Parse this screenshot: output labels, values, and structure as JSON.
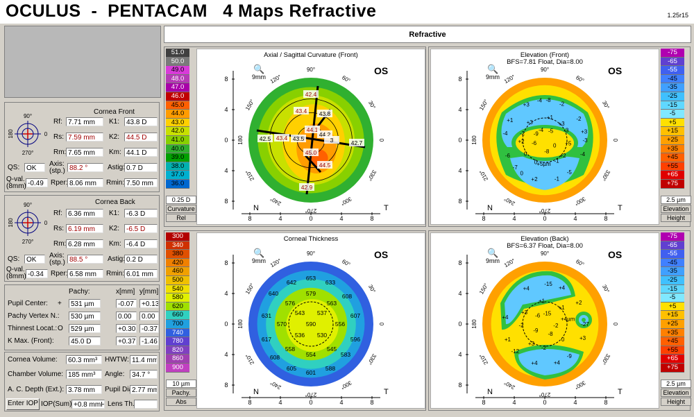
{
  "header": {
    "title": "OCULUS  -  PENTACAM   4 Maps Refractive",
    "version": "1.25r15"
  },
  "main_title": "Refractive",
  "cornea_front": {
    "title": "Cornea Front",
    "rf_label": "Rf:",
    "rf": "7.71 mm",
    "k1_label": "K1:",
    "k1": "43.8 D",
    "rs_label": "Rs:",
    "rs": "7.59 mm",
    "k2_label": "K2:",
    "k2": "44.5 D",
    "rm_label": "Rm:",
    "rm": "7.65 mm",
    "km_label": "Km:",
    "km": "44.1 D",
    "qs_label": "QS:",
    "qs": "OK",
    "axis_label": "Axis:",
    "axis_sub": "(stp.)",
    "axis": "88.2 °",
    "astig_label": "Astig:",
    "astig": "0.7 D",
    "qval_label": "Q-val.",
    "qval_sub": "(8mm)",
    "qval": "-0.49",
    "rper_label": "Rper:",
    "rper": "8.06 mm",
    "rmin_label": "Rmin:",
    "rmin": "7.50 mm"
  },
  "cornea_back": {
    "title": "Cornea Back",
    "rf_label": "Rf:",
    "rf": "6.36 mm",
    "k1_label": "K1:",
    "k1": "-6.3 D",
    "rs_label": "Rs:",
    "rs": "6.19 mm",
    "k2_label": "K2:",
    "k2": "-6.5 D",
    "rm_label": "Rm:",
    "rm": "6.28 mm",
    "km_label": "Km:",
    "km": "-6.4 D",
    "qs_label": "QS:",
    "qs": "OK",
    "axis_label": "Axis:",
    "axis_sub": "(stp.)",
    "axis": "88.5 °",
    "astig_label": "Astig:",
    "astig": "0.2 D",
    "qval_label": "Q-val.",
    "qval_sub": "(8mm)",
    "qval": "-0.34",
    "rper_label": "Rper:",
    "rper": "6.58 mm",
    "rmin_label": "Rmin:",
    "rmin": "6.01 mm"
  },
  "orientation": {
    "top": "90°",
    "bottom": "270°",
    "left": "180",
    "right": "0"
  },
  "pachy": {
    "col_pachy": "Pachy:",
    "col_x": "x[mm]",
    "col_y": "y[mm]",
    "rows": [
      {
        "label": "Pupil Center:",
        "mark": "+",
        "pachy": "531 µm",
        "x": "-0.07",
        "y": "+0.13"
      },
      {
        "label": "Pachy Vertex N.:",
        "mark": "",
        "pachy": "530 µm",
        "x": "0.00",
        "y": "0.00"
      },
      {
        "label": "Thinnest Locat.:",
        "mark": "O",
        "pachy": "529 µm",
        "x": "+0.30",
        "y": "-0.37"
      },
      {
        "label": "K Max. (Front):",
        "mark": "",
        "pachy": "45.0 D",
        "x": "+0.37",
        "y": "-1.46"
      }
    ]
  },
  "volumes": {
    "cornea_volume_label": "Cornea Volume:",
    "cornea_volume": "60.3 mm³",
    "hwtw_label": "HWTW:",
    "hwtw": "11.4 mm",
    "chamber_volume_label": "Chamber Volume:",
    "chamber_volume": "185 mm³",
    "angle_label": "Angle:",
    "angle": "34.7 °",
    "acd_label": "A. C. Depth (Ext.):",
    "acd": "3.78 mm",
    "pupil_dia_label": "Pupil Dia:",
    "pupil_dia": "2.77 mm",
    "enter_iop": "Enter IOP",
    "iop_label": "IOP(Sum):",
    "iop": "+0.8 mmHg",
    "lens_label": "Lens Th.:",
    "lens": ""
  },
  "maps": {
    "common": {
      "nasal": "N",
      "temporal": "T",
      "eye": "OS",
      "scale_mm": "9mm",
      "x_ticks": [
        "8",
        "4",
        "0",
        "4",
        "8"
      ],
      "y_ticks": [
        "8",
        "4",
        "0",
        "4",
        "8"
      ],
      "angles": [
        "90°",
        "60°",
        "30°",
        "0",
        "330°",
        "300°",
        "270°",
        "240°",
        "210°",
        "180",
        "150°",
        "120°"
      ]
    },
    "axial": {
      "title": "Axial / Sagittal Curvature (Front)",
      "scale": [
        "51.0",
        "50.0",
        "49.0",
        "48.0",
        "47.0",
        "46.0",
        "45.0",
        "44.0",
        "43.0",
        "42.0",
        "41.0",
        "40.0",
        "39.0",
        "38.0",
        "37.0",
        "36.0"
      ],
      "step": "0.25 D",
      "type": "Curvature",
      "mode": "Rel",
      "labels": [
        "42.4",
        "43.4",
        "43.8",
        "44.1",
        "44.2",
        "43.5",
        "43.4",
        "42.5",
        "45.0",
        "44.5",
        "42.9",
        "42.7",
        "3"
      ]
    },
    "elev_front": {
      "title": "Elevation (Front)",
      "subtitle": "BFS=7.81 Float, Dia=8.00",
      "scale": [
        "-75",
        "-65",
        "-55",
        "-45",
        "-35",
        "-25",
        "-15",
        "-5",
        "+5",
        "+15",
        "+25",
        "+35",
        "+45",
        "+55",
        "+65",
        "+75"
      ],
      "step": "2.5 µm",
      "type": "Elevation",
      "mode": "Height",
      "labels": [
        "-3",
        "-7",
        "-8",
        "-5",
        "-4",
        "-2",
        "+2",
        "+3",
        "-4",
        "-6",
        "-2",
        "-1",
        "+1",
        "+3",
        "0",
        "-4",
        "+2",
        "+2",
        "+3",
        "+5µm",
        "+3",
        "+5",
        "0",
        "+1",
        "-1",
        "-2",
        "-3",
        "0",
        "-4",
        "0",
        "-6",
        "-5",
        "-8",
        "-9"
      ]
    },
    "thickness": {
      "title": "Corneal Thickness",
      "scale": [
        "300",
        "340",
        "380",
        "420",
        "460",
        "500",
        "540",
        "580",
        "620",
        "660",
        "700",
        "740",
        "780",
        "820",
        "860",
        "900"
      ],
      "step": "10 µm",
      "type": "Pachy.",
      "mode": "Abs",
      "labels": [
        "653",
        "642",
        "633",
        "640",
        "579",
        "576",
        "563",
        "608",
        "631",
        "543",
        "537",
        "607",
        "570",
        "590",
        "556",
        "617",
        "536",
        "530",
        "596",
        "558",
        "545",
        "608",
        "554",
        "583",
        "605",
        "601",
        "588"
      ]
    },
    "elev_back": {
      "title": "Elevation (Back)",
      "subtitle": "BFS=6.37 Float, Dia=8.00",
      "scale": [
        "-75",
        "-65",
        "-55",
        "-45",
        "-35",
        "-25",
        "-15",
        "-5",
        "+5",
        "+15",
        "+25",
        "+35",
        "+45",
        "+55",
        "+65",
        "+75"
      ],
      "step": "2.5 µm",
      "type": "Elevation",
      "mode": "Height",
      "labels": [
        "-27",
        "-12",
        "-15",
        "-9",
        "+4",
        "+2",
        "+4",
        "+4",
        "+3",
        "+1",
        "+4",
        "+4",
        "+3",
        "+4µm",
        "+3",
        "+1",
        "0",
        "-2",
        "+1",
        "-2",
        "-6",
        "-2",
        "-9",
        "-15",
        "-8"
      ]
    }
  },
  "colors": {
    "curv_scale": [
      "#404040",
      "#7a7a7a",
      "#d93bd9",
      "#b63bb6",
      "#a800a8",
      "#c00000",
      "#ff6000",
      "#ff9c00",
      "#ffd000",
      "#c8e000",
      "#88d000",
      "#30b030",
      "#00a000",
      "#00b0b0",
      "#00b0d0",
      "#0068d0"
    ],
    "elev_scale": [
      "#b000b0",
      "#6040d0",
      "#4060f0",
      "#4080ff",
      "#40a0ff",
      "#40c0ff",
      "#60d8ff",
      "#80e8ff",
      "#ffe000",
      "#ffc000",
      "#ffa000",
      "#ff8000",
      "#ff6000",
      "#ff4000",
      "#e00000",
      "#c00000"
    ],
    "thick_scale": [
      "#b30000",
      "#d03000",
      "#e05000",
      "#f08000",
      "#f0a000",
      "#f0c000",
      "#f0e000",
      "#e0f000",
      "#a0e000",
      "#30d0c0",
      "#20a0e0",
      "#3060e0",
      "#6040d0",
      "#8040c0",
      "#a040b0",
      "#c040c0"
    ]
  }
}
